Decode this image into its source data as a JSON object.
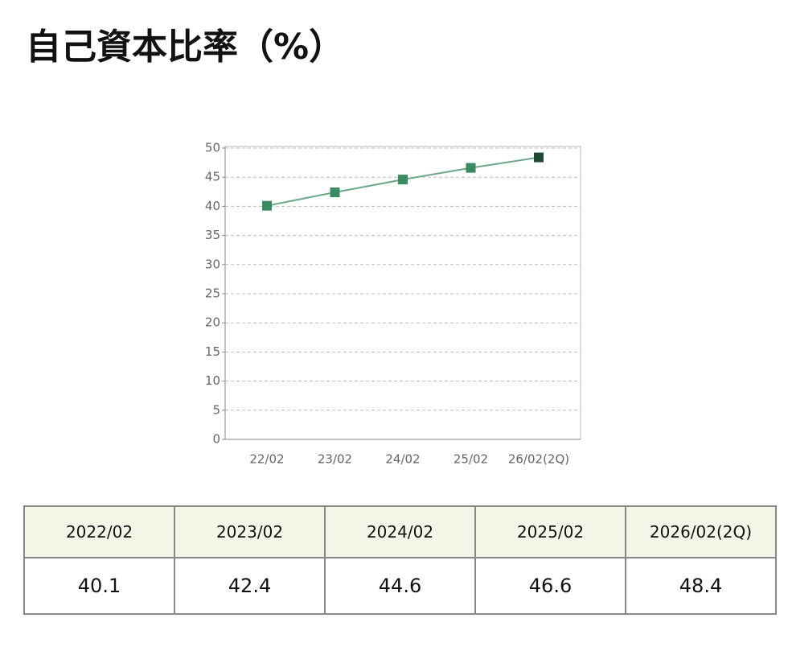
{
  "title": "自己資本比率（%）",
  "chart_data": {
    "type": "line",
    "categories": [
      "22/02",
      "23/02",
      "24/02",
      "25/02",
      "26/02(2Q)"
    ],
    "series": [
      {
        "color": "#6aa888",
        "marker_color": "#3a8a62",
        "last_marker_color": "#1e4a32",
        "values": [
          40.1,
          42.4,
          44.6,
          46.6,
          48.4
        ]
      }
    ],
    "ylim": [
      0,
      50
    ],
    "yticks": [
      0,
      5,
      10,
      15,
      20,
      25,
      30,
      35,
      40,
      45,
      50
    ],
    "grid": true
  },
  "table": {
    "header": [
      "2022/02",
      "2023/02",
      "2024/02",
      "2025/02",
      "2026/02(2Q)"
    ],
    "rows": [
      [
        "40.1",
        "42.4",
        "44.6",
        "46.6",
        "48.4"
      ]
    ]
  }
}
